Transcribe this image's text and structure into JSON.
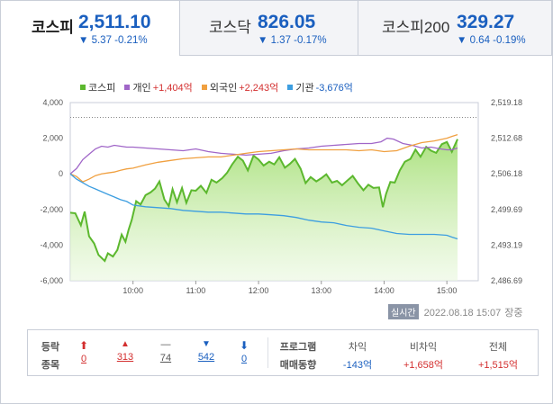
{
  "tabs": [
    {
      "name": "코스피",
      "value": "2,511.10",
      "change": "▼ 5.37 -0.21%",
      "active": true
    },
    {
      "name": "코스닥",
      "value": "826.05",
      "change": "▼ 1.37 -0.17%",
      "active": false
    },
    {
      "name": "코스피200",
      "value": "329.27",
      "change": "▼ 0.64 -0.19%",
      "active": false
    }
  ],
  "legend": [
    {
      "name": "코스피",
      "value": "",
      "color": "#5cb82e"
    },
    {
      "name": "개인",
      "value": "+1,404억",
      "color": "#a066c8",
      "value_color": "#d32f2f"
    },
    {
      "name": "외국인",
      "value": "+2,243억",
      "color": "#f0a040",
      "value_color": "#d32f2f"
    },
    {
      "name": "기관",
      "value": "-3,676억",
      "color": "#3d9ee0",
      "value_color": "#1a5fbf"
    }
  ],
  "chart_data": {
    "type": "line",
    "x_ticks": [
      "10:00",
      "11:00",
      "12:00",
      "13:00",
      "14:00",
      "15:00"
    ],
    "y_left_ticks": [
      "4,000",
      "2,000",
      "0",
      "-2,000",
      "-4,000",
      "-6,000"
    ],
    "y_left_range": [
      -6000,
      4000
    ],
    "y_right_ticks": [
      "2,519.18",
      "2,512.68",
      "2,506.18",
      "2,499.69",
      "2,493.19",
      "2,486.69"
    ],
    "y_right_range": [
      2486.69,
      2519.18
    ],
    "x_range": [
      9.0,
      15.5
    ],
    "reference_line": 2516.47,
    "series": [
      {
        "name": "코스피",
        "axis": "right",
        "color": "#5cb82e",
        "type": "area",
        "x": [
          9.0,
          9.08,
          9.17,
          9.23,
          9.3,
          9.38,
          9.45,
          9.55,
          9.6,
          9.68,
          9.75,
          9.82,
          9.88,
          9.93,
          9.98,
          10.05,
          10.12,
          10.2,
          10.28,
          10.35,
          10.42,
          10.5,
          10.57,
          10.63,
          10.7,
          10.78,
          10.85,
          10.93,
          11.0,
          11.08,
          11.17,
          11.25,
          11.33,
          11.42,
          11.5,
          11.58,
          11.67,
          11.75,
          11.83,
          11.92,
          12.0,
          12.08,
          12.17,
          12.25,
          12.33,
          12.42,
          12.5,
          12.58,
          12.67,
          12.75,
          12.83,
          12.92,
          13.0,
          13.08,
          13.17,
          13.25,
          13.33,
          13.42,
          13.5,
          13.58,
          13.67,
          13.75,
          13.83,
          13.92,
          13.98,
          14.03,
          14.1,
          14.17,
          14.25,
          14.33,
          14.42,
          14.5,
          14.58,
          14.67,
          14.75,
          14.83,
          14.92,
          15.0,
          15.08,
          15.17
        ],
        "y": [
          2499.1,
          2499.0,
          2496.8,
          2499.3,
          2494.8,
          2493.5,
          2491.4,
          2490.3,
          2491.7,
          2491.1,
          2492.3,
          2495.1,
          2493.8,
          2496.0,
          2497.8,
          2501.2,
          2500.6,
          2502.3,
          2502.8,
          2503.5,
          2504.8,
          2501.5,
          2500.3,
          2503.4,
          2501.0,
          2503.6,
          2500.9,
          2503.2,
          2503.1,
          2504.0,
          2502.7,
          2505.1,
          2504.6,
          2505.4,
          2506.4,
          2507.9,
          2509.3,
          2508.6,
          2506.8,
          2509.5,
          2508.8,
          2507.7,
          2508.4,
          2507.9,
          2509.2,
          2507.3,
          2508.0,
          2508.9,
          2507.1,
          2504.5,
          2505.6,
          2504.8,
          2505.4,
          2506.1,
          2504.6,
          2504.9,
          2504.1,
          2505.0,
          2505.8,
          2504.5,
          2503.2,
          2504.2,
          2503.6,
          2503.7,
          2500.1,
          2502.5,
          2504.7,
          2504.6,
          2506.8,
          2508.4,
          2508.9,
          2510.6,
          2509.3,
          2511.1,
          2510.4,
          2510.0,
          2511.6,
          2512.0,
          2510.2,
          2512.5
        ]
      },
      {
        "name": "개인",
        "axis": "left",
        "color": "#a066c8",
        "x": [
          9.0,
          9.1,
          9.2,
          9.3,
          9.4,
          9.5,
          9.6,
          9.7,
          9.8,
          9.9,
          10.0,
          10.2,
          10.4,
          10.6,
          10.8,
          11.0,
          11.2,
          11.4,
          11.6,
          11.8,
          12.0,
          12.2,
          12.4,
          12.6,
          12.8,
          13.0,
          13.2,
          13.4,
          13.6,
          13.8,
          13.95,
          14.05,
          14.15,
          14.3,
          14.45,
          14.6,
          14.75,
          14.9,
          15.0,
          15.08,
          15.17
        ],
        "y": [
          0,
          300,
          800,
          1100,
          1400,
          1550,
          1500,
          1600,
          1550,
          1500,
          1500,
          1450,
          1400,
          1350,
          1300,
          1400,
          1250,
          1150,
          1100,
          1050,
          1100,
          1150,
          1300,
          1400,
          1450,
          1550,
          1600,
          1650,
          1700,
          1700,
          1800,
          2000,
          1950,
          1700,
          1600,
          1450,
          1500,
          1400,
          1350,
          1350,
          1450
        ]
      },
      {
        "name": "외국인",
        "axis": "left",
        "color": "#f0a040",
        "x": [
          9.0,
          9.1,
          9.2,
          9.3,
          9.4,
          9.5,
          9.6,
          9.7,
          9.8,
          9.9,
          10.0,
          10.2,
          10.4,
          10.6,
          10.8,
          11.0,
          11.2,
          11.4,
          11.6,
          11.8,
          12.0,
          12.2,
          12.4,
          12.6,
          12.8,
          13.0,
          13.2,
          13.4,
          13.6,
          13.8,
          14.0,
          14.2,
          14.4,
          14.6,
          14.8,
          15.0,
          15.08,
          15.17
        ],
        "y": [
          0,
          -150,
          -450,
          -300,
          -100,
          0,
          50,
          100,
          200,
          280,
          320,
          500,
          650,
          750,
          850,
          900,
          950,
          950,
          1050,
          1150,
          1250,
          1300,
          1350,
          1400,
          1350,
          1350,
          1350,
          1350,
          1300,
          1350,
          1250,
          1300,
          1550,
          1750,
          1850,
          2000,
          2100,
          2200
        ]
      },
      {
        "name": "기관",
        "axis": "left",
        "color": "#3d9ee0",
        "x": [
          9.0,
          9.1,
          9.2,
          9.3,
          9.4,
          9.5,
          9.6,
          9.7,
          9.8,
          9.9,
          10.0,
          10.2,
          10.4,
          10.6,
          10.8,
          11.0,
          11.2,
          11.4,
          11.6,
          11.8,
          12.0,
          12.2,
          12.4,
          12.6,
          12.8,
          13.0,
          13.2,
          13.4,
          13.6,
          13.8,
          14.0,
          14.2,
          14.4,
          14.6,
          14.8,
          15.0,
          15.08,
          15.17
        ],
        "y": [
          0,
          -300,
          -500,
          -700,
          -850,
          -1000,
          -1150,
          -1300,
          -1450,
          -1550,
          -1750,
          -1850,
          -1900,
          -1950,
          -2050,
          -2100,
          -2150,
          -2150,
          -2200,
          -2250,
          -2250,
          -2300,
          -2350,
          -2450,
          -2600,
          -2700,
          -2750,
          -2900,
          -3000,
          -3050,
          -3200,
          -3350,
          -3400,
          -3400,
          -3400,
          -3450,
          -3550,
          -3650
        ]
      }
    ]
  },
  "realtime": {
    "badge": "실시간",
    "time": "2022.08.18 15:07",
    "status": "장중"
  },
  "summary": {
    "label1": "등락",
    "label2": "종목",
    "counts": [
      {
        "symbol": "⬆",
        "value": "0",
        "color": "#d32f2f"
      },
      {
        "symbol": "▲",
        "value": "313",
        "color": "#d32f2f"
      },
      {
        "symbol": "—",
        "value": "74",
        "color": "#555555"
      },
      {
        "symbol": "▼",
        "value": "542",
        "color": "#1a5fbf"
      },
      {
        "symbol": "⬇",
        "value": "0",
        "color": "#1a5fbf"
      }
    ],
    "program_label1": "프로그램",
    "program_label2": "매매동향",
    "program": [
      {
        "label": "차익",
        "value": "-143억",
        "color": "#1a5fbf"
      },
      {
        "label": "비차익",
        "value": "+1,658억",
        "color": "#d32f2f"
      },
      {
        "label": "전체",
        "value": "+1,515억",
        "color": "#d32f2f"
      }
    ]
  }
}
